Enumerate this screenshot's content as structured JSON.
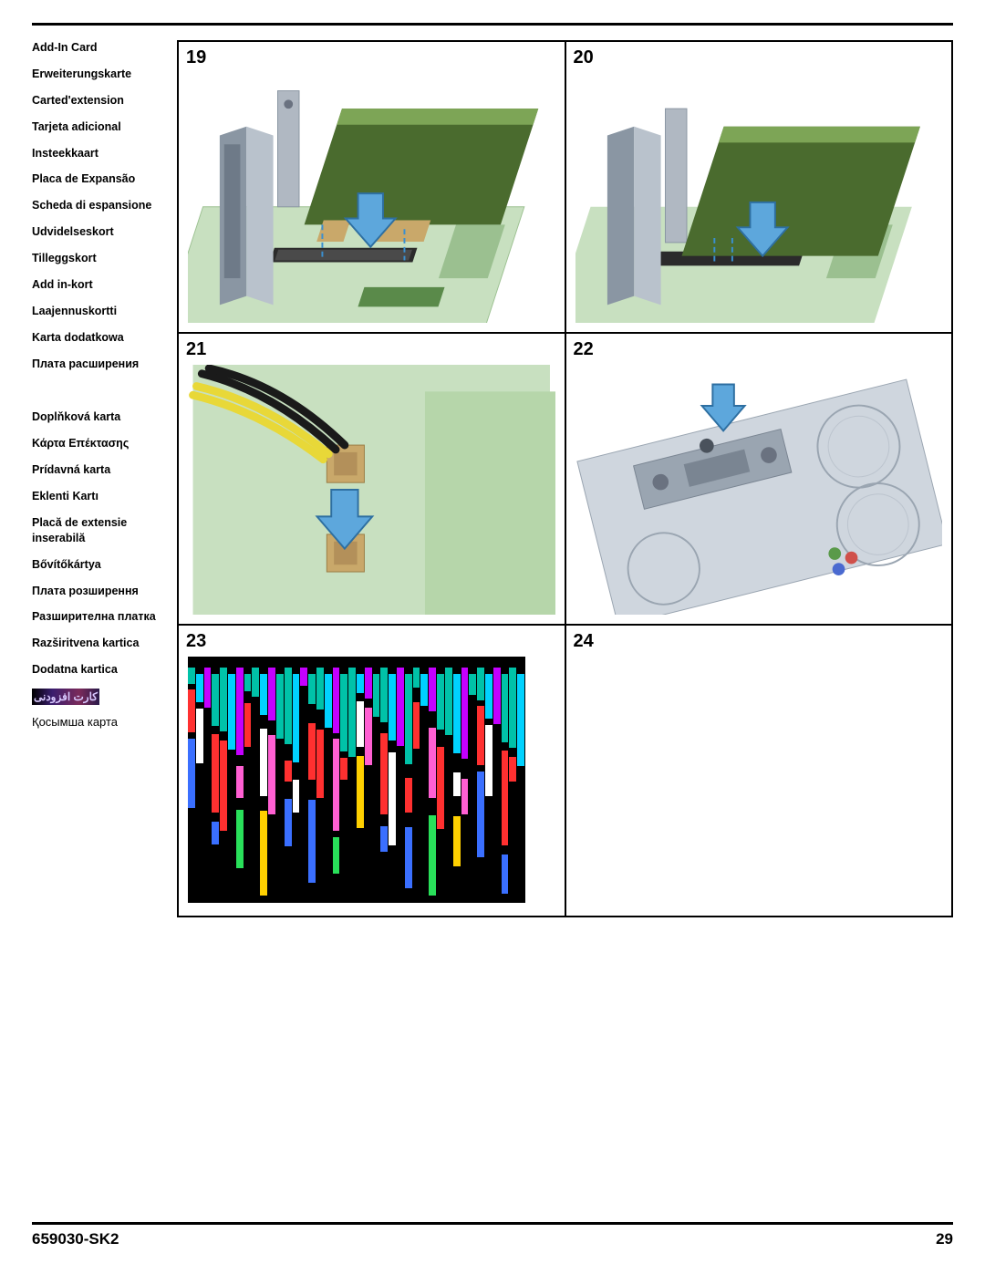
{
  "sidebar": {
    "group1": [
      "Add-In Card",
      "Erweiterungskarte",
      "Carted'extension",
      "Tarjeta adicional",
      "Insteekkaart",
      "Placa de Expansão",
      "Scheda di espansione",
      "Udvidelseskort",
      "Tilleggskort",
      "Add in-kort",
      "Laajennuskortti",
      "Karta dodatkowa",
      "Плата расширения"
    ],
    "group2": [
      "Doplňková karta",
      "Κάρτα Επέκτασης",
      "Prídavná karta",
      "Eklenti Kartı",
      "Placă de extensie inserabilă",
      "Bővítőkártya",
      "Плата розширення",
      "Разширителна платка",
      "Razširitvena kartica",
      "Dodatna kartica"
    ],
    "rtl": "کارت افزودنی",
    "kazakh": "Қосымша карта"
  },
  "steps": {
    "s19": "19",
    "s20": "20",
    "s21": "21",
    "s22": "22",
    "s23": "23",
    "s24": "24"
  },
  "footer": {
    "docnum": "659030-SK2",
    "pagenum": "29"
  },
  "colors": {
    "card": "#4a6b2e",
    "card_light": "#7da556",
    "mb": "#c8e0c0",
    "mb_dark": "#9bc090",
    "chassis": "#b9c2cc",
    "chassis_dark": "#8a96a3",
    "bracket": "#b0b8c2",
    "arrow": "#5da7dc",
    "arrow_stroke": "#2e6fa1",
    "screw": "#6a7280",
    "wire_yellow": "#e8d838",
    "wire_black": "#1a1a1a",
    "connector": "#c9a86a"
  },
  "glitch_palette": [
    "#00c2a8",
    "#ff5fd2",
    "#ffd000",
    "#6a4fff",
    "#00d2ff",
    "#ff3030",
    "#29e05a",
    "#ff9a2e",
    "#c400ff",
    "#ffffff",
    "#3a6fff",
    "#8fff5a"
  ]
}
